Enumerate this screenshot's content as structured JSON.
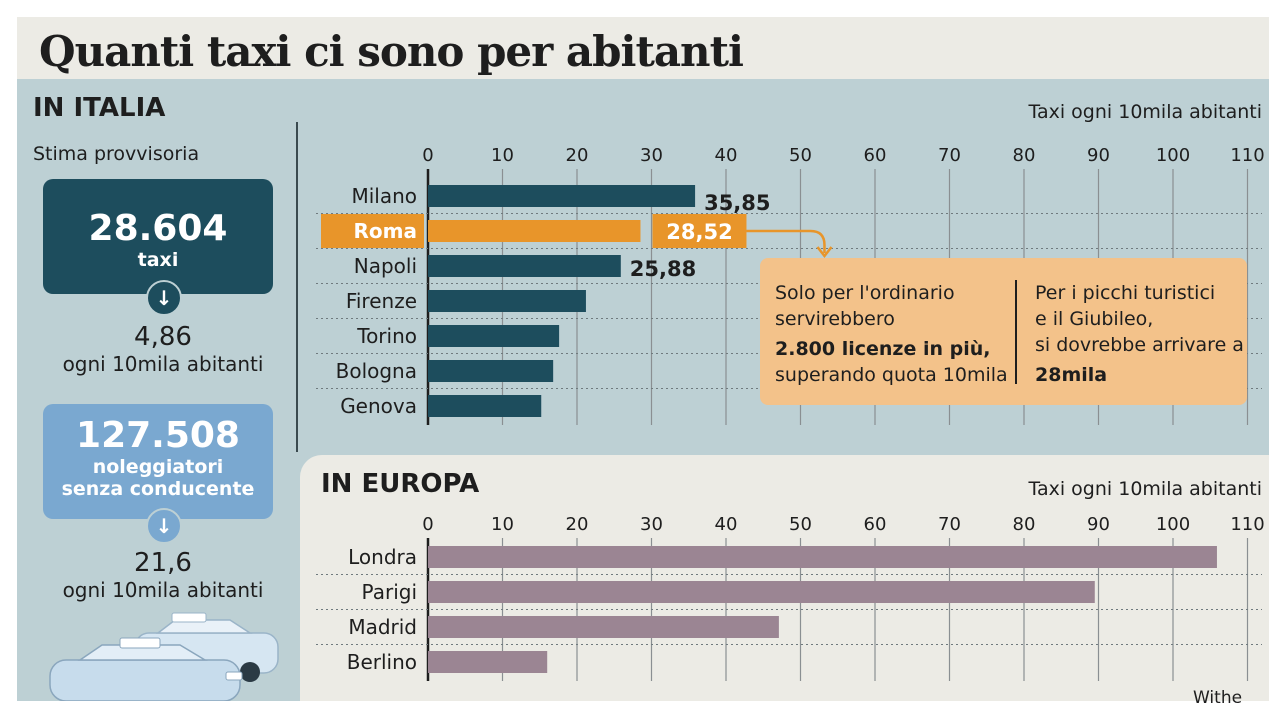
{
  "title": "Quanti taxi ci sono per abitanti",
  "italia": {
    "heading": "IN ITALIA",
    "subheading": "Stima provvisoria",
    "unit_label": "Taxi ogni 10mila abitanti",
    "taxi_card": {
      "value": "28.604",
      "label": "taxi"
    },
    "taxi_rate": {
      "value": "4,86",
      "label": "ogni 10mila abitanti"
    },
    "ncc_card": {
      "value": "127.508",
      "label_line1": "noleggiatori",
      "label_line2": "senza conducente"
    },
    "ncc_rate": {
      "value": "21,6",
      "label": "ogni 10mila abitanti"
    }
  },
  "callout": {
    "left_line1": "Solo per l'ordinario",
    "left_line2": "servirebbero",
    "left_bold": "2.800 licenze in più,",
    "left_line4": "superando quota 10mila",
    "right_line1": "Per i picchi turistici",
    "right_line2": "e il Giubileo,",
    "right_line3": "si dovrebbe arrivare a",
    "right_bold": "28mila"
  },
  "europa": {
    "heading": "IN EUROPA",
    "unit_label": "Taxi ogni 10mila abitanti",
    "source_fragment": "Withe"
  },
  "colors": {
    "italy_bar": "#1d4d5d",
    "highlight_bar": "#e8952a",
    "europe_bar": "#9b8593",
    "callout_bg": "#f3c28a"
  },
  "chart_data": [
    {
      "type": "bar",
      "orientation": "horizontal",
      "categories": [
        "Milano",
        "Roma",
        "Napoli",
        "Firenze",
        "Torino",
        "Bologna",
        "Genova"
      ],
      "values": [
        35.85,
        28.52,
        25.88,
        21.2,
        17.6,
        16.8,
        15.2
      ],
      "data_labels": [
        "35,85",
        "28,52",
        "25,88",
        "",
        "",
        "",
        ""
      ],
      "highlight": "Roma",
      "xlim": [
        0,
        110
      ],
      "ticks": [
        "0",
        "10",
        "20",
        "30",
        "40",
        "50",
        "60",
        "70",
        "80",
        "90",
        "100",
        "110"
      ],
      "grid": true
    },
    {
      "type": "bar",
      "orientation": "horizontal",
      "categories": [
        "Londra",
        "Parigi",
        "Madrid",
        "Berlino"
      ],
      "values": [
        105.9,
        89.5,
        47.1,
        16.0
      ],
      "xlim": [
        0,
        110
      ],
      "ticks": [
        "0",
        "10",
        "20",
        "30",
        "40",
        "50",
        "60",
        "70",
        "80",
        "90",
        "100",
        "110"
      ],
      "grid": true
    }
  ]
}
